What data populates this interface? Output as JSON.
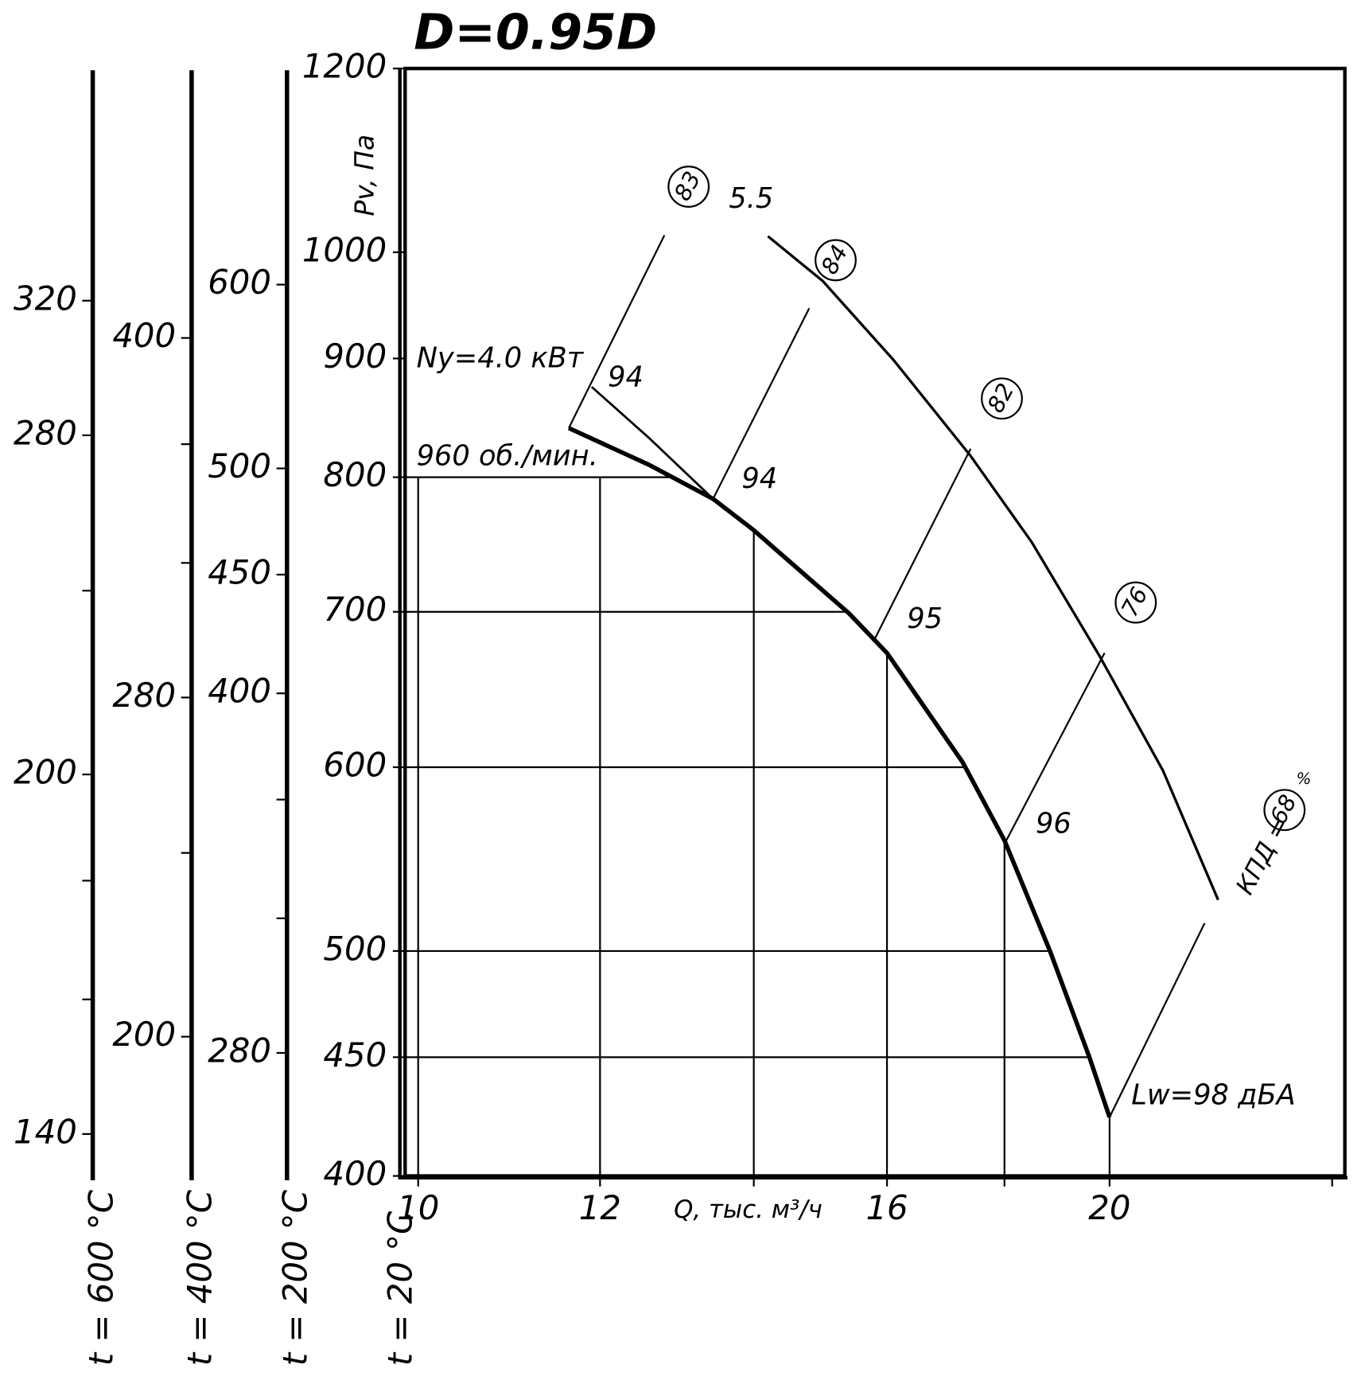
{
  "chart_data": {
    "type": "line",
    "title": "D=0.95D",
    "xlabel": "Q, тыс. м³/ч",
    "ylabel": "Pv, Па",
    "xscale": "log",
    "yscale": "log",
    "xlim": [
      9.87,
      25.1
    ],
    "ylim": [
      400,
      1200
    ],
    "xticks": [
      10,
      12,
      16,
      20
    ],
    "xminorticks": [
      14,
      18,
      25
    ],
    "yticks": [
      400,
      450,
      500,
      600,
      700,
      800,
      900,
      1000,
      1200
    ],
    "grid": true,
    "grid_top": 800,
    "reference_scale": {
      "label": "t = 20 °C",
      "t": 20
    },
    "temperature_scales": [
      {
        "label": "t = 600 °C",
        "t": 600,
        "ticks": [
          320,
          280,
          200,
          140
        ],
        "minorticks": [
          240,
          180,
          160
        ]
      },
      {
        "label": "t = 400 °C",
        "t": 400,
        "ticks": [
          400,
          280,
          200
        ],
        "minorticks": [
          360,
          320,
          240
        ]
      },
      {
        "label": "t = 200 °C",
        "t": 200,
        "ticks": [
          600,
          500,
          450,
          400,
          280
        ],
        "minorticks": [
          360,
          320
        ]
      }
    ],
    "series": [
      {
        "name": "960 об./мин.",
        "color": "#000000",
        "width": 5,
        "x": [
          11.63,
          12.6,
          13.44,
          14.0,
          15.4,
          16.0,
          17.26,
          18.0,
          18.84,
          19.6,
          20.0
        ],
        "values": [
          840,
          810,
          783,
          759,
          699,
          672,
          603,
          558,
          500,
          450,
          424
        ]
      },
      {
        "name": "5.5",
        "color": "#000000",
        "width": 3,
        "x": [
          14.2,
          15.0,
          16.1,
          17.4,
          18.5,
          19.8,
          21.1,
          22.3
        ],
        "values": [
          1016,
          972,
          899,
          817,
          750,
          670,
          598,
          526
        ]
      },
      {
        "name": "Ny=4.0 кВт",
        "color": "#000000",
        "width": 2.5,
        "x": [
          11.9,
          12.6,
          13.44
        ],
        "values": [
          875,
          832,
          783
        ]
      }
    ],
    "efficiency_lines": [
      {
        "label": "83",
        "x": [
          11.63,
          12.8
        ],
        "values": [
          840,
          1017
        ]
      },
      {
        "label": "84",
        "x": [
          13.44,
          14.8
        ],
        "values": [
          783,
          946
        ]
      },
      {
        "label": "82",
        "x": [
          15.8,
          17.4
        ],
        "values": [
          681,
          823
        ]
      },
      {
        "label": "76",
        "x": [
          18.0,
          19.9
        ],
        "values": [
          556,
          672
        ]
      },
      {
        "label": "68",
        "x": [
          20.0,
          22.0
        ],
        "values": [
          424,
          514
        ]
      }
    ],
    "efficiency_prefix": "КПД =",
    "efficiency_unit": "%",
    "noise_labels": [
      "94",
      "94",
      "95",
      "96"
    ],
    "noise_last": "Lw=98 дБА"
  }
}
